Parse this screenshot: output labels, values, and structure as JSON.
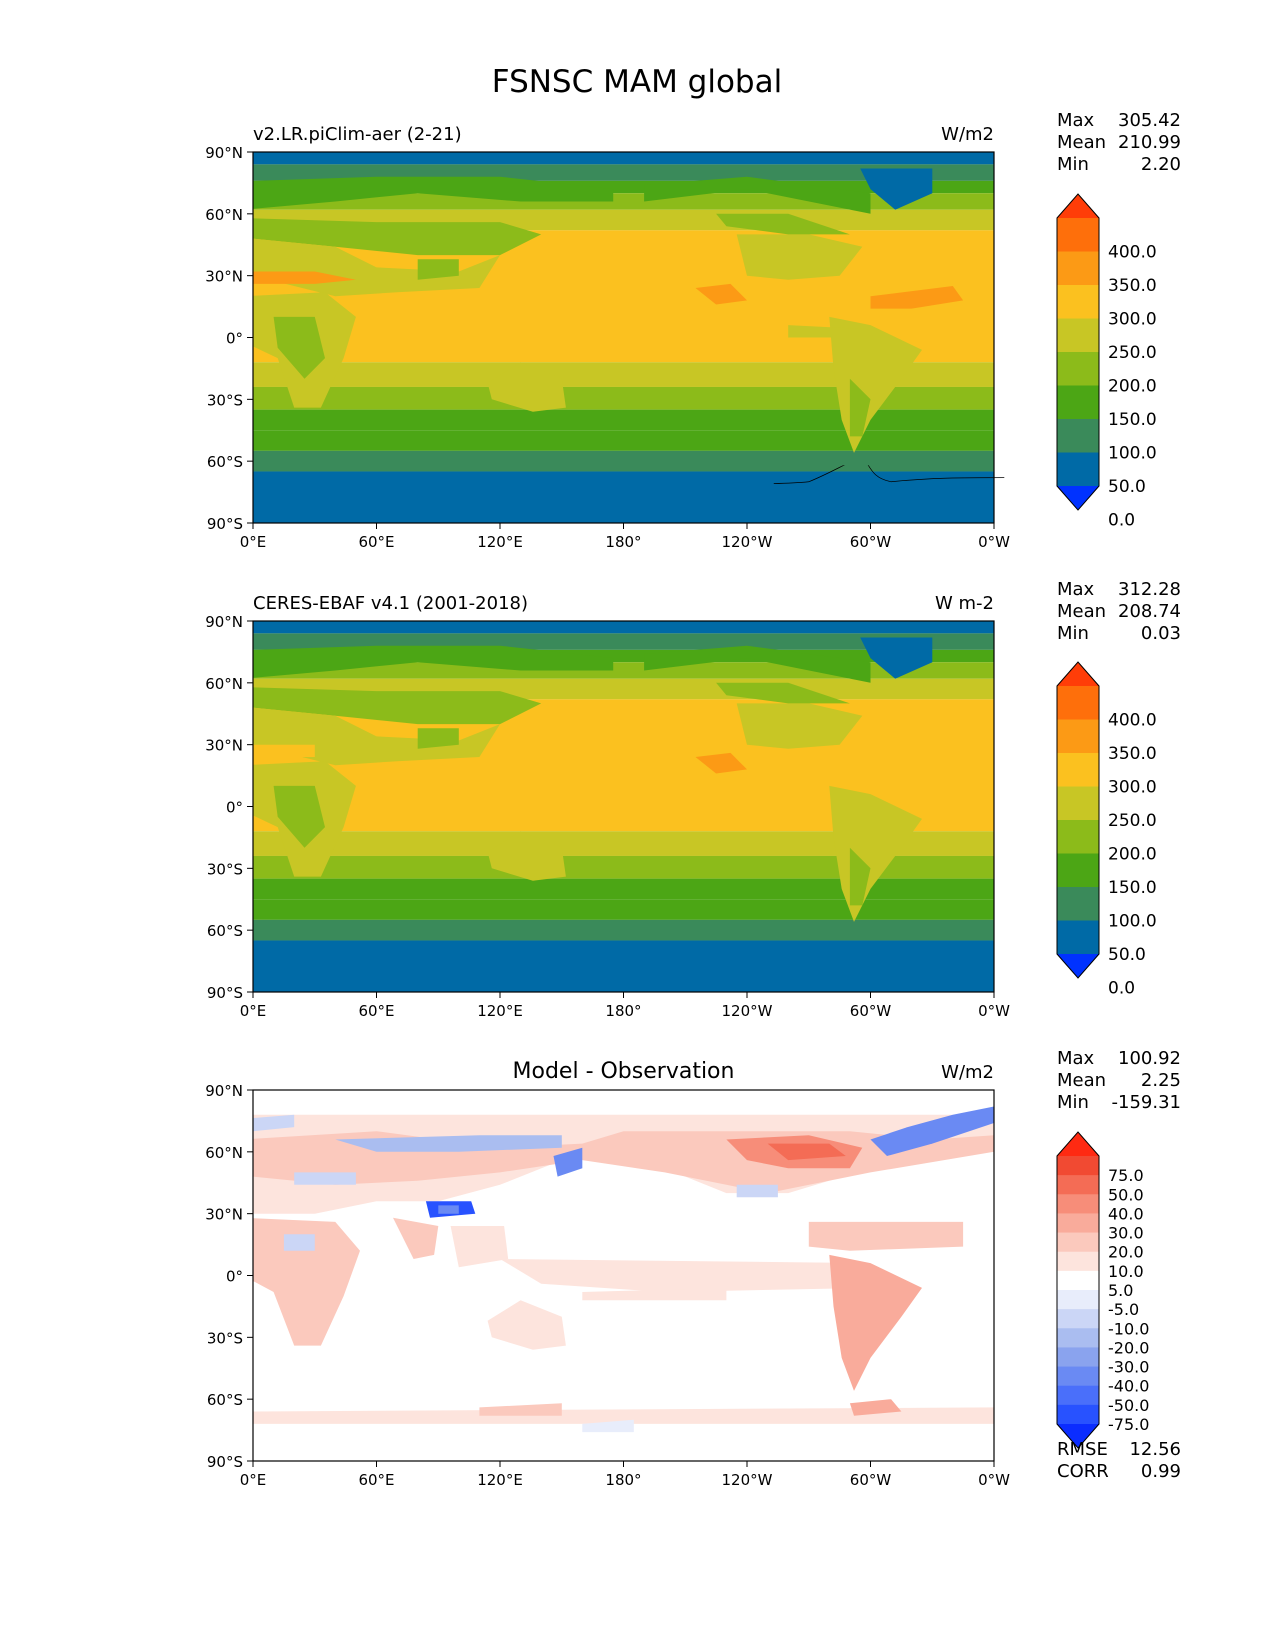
{
  "figure": {
    "title": "FSNSC MAM global",
    "lat_ticks": [
      "90°N",
      "60°N",
      "30°N",
      "0°",
      "30°S",
      "60°S",
      "90°S"
    ],
    "lon_ticks": [
      "0°E",
      "60°E",
      "120°E",
      "180°",
      "120°W",
      "60°W",
      "0°W"
    ]
  },
  "panels": [
    {
      "id": "test",
      "left_title": "v2.LR.piClim-aer (2-21)",
      "center_title": "",
      "units": "W/m2",
      "stats": [
        {
          "label": "Max",
          "value": "305.42"
        },
        {
          "label": "Mean",
          "value": "210.99"
        },
        {
          "label": "Min",
          "value": "2.20"
        }
      ],
      "colorbar": {
        "ticks": [
          "400.0",
          "350.0",
          "300.0",
          "250.0",
          "200.0",
          "150.0",
          "100.0",
          "50.0",
          "0.0"
        ],
        "colors": [
          "#0032ff",
          "#006aa6",
          "#3a8a5a",
          "#4ca615",
          "#8cbb1a",
          "#c8c625",
          "#fbc11f",
          "#fc9a15",
          "#fe6f0b",
          "#ff3d08"
        ]
      },
      "extra_stats": []
    },
    {
      "id": "reference",
      "left_title": "CERES-EBAF v4.1 (2001-2018)",
      "center_title": "",
      "units": "W m-2",
      "stats": [
        {
          "label": "Max",
          "value": "312.28"
        },
        {
          "label": "Mean",
          "value": "208.74"
        },
        {
          "label": "Min",
          "value": "0.03"
        }
      ],
      "colorbar": {
        "ticks": [
          "400.0",
          "350.0",
          "300.0",
          "250.0",
          "200.0",
          "150.0",
          "100.0",
          "50.0",
          "0.0"
        ],
        "colors": [
          "#0032ff",
          "#006aa6",
          "#3a8a5a",
          "#4ca615",
          "#8cbb1a",
          "#c8c625",
          "#fbc11f",
          "#fc9a15",
          "#fe6f0b",
          "#ff3d08"
        ]
      },
      "extra_stats": []
    },
    {
      "id": "difference",
      "left_title": "",
      "center_title": "Model - Observation",
      "units": "W/m2",
      "stats": [
        {
          "label": "Max",
          "value": "100.92"
        },
        {
          "label": "Mean",
          "value": "2.25"
        },
        {
          "label": "Min",
          "value": "-159.31"
        }
      ],
      "colorbar": {
        "ticks": [
          "75.0",
          "50.0",
          "40.0",
          "30.0",
          "20.0",
          "10.0",
          "5.0",
          "-5.0",
          "-10.0",
          "-20.0",
          "-30.0",
          "-40.0",
          "-50.0",
          "-75.0"
        ],
        "colors": [
          "#0b2dff",
          "#2852ff",
          "#4a6ffa",
          "#6a8af3",
          "#8aa3ee",
          "#aabdf0",
          "#cbd6f6",
          "#e8edfb",
          "#ffffff",
          "#fde4dd",
          "#fbc9bd",
          "#f9ab9b",
          "#f78d79",
          "#f46c55",
          "#f14a32",
          "#fe2a12"
        ]
      },
      "extra_stats": [
        {
          "label": "RMSE",
          "value": "12.56"
        },
        {
          "label": "CORR",
          "value": "0.99"
        }
      ]
    }
  ]
}
